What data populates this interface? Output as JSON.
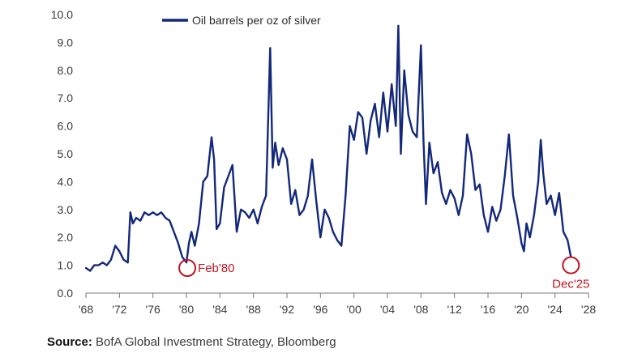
{
  "chart_data": {
    "type": "line",
    "title": "",
    "xlabel": "",
    "ylabel": "",
    "xlim": [
      1968,
      2028
    ],
    "ylim": [
      0,
      10
    ],
    "grid": false,
    "y_ticks": [
      {
        "value": 0,
        "label": "0.0"
      },
      {
        "value": 1,
        "label": "1.0"
      },
      {
        "value": 2,
        "label": "2.0"
      },
      {
        "value": 3,
        "label": "3.0"
      },
      {
        "value": 4,
        "label": "4.0"
      },
      {
        "value": 5,
        "label": "5.0"
      },
      {
        "value": 6,
        "label": "6.0"
      },
      {
        "value": 7,
        "label": "7.0"
      },
      {
        "value": 8,
        "label": "8.0"
      },
      {
        "value": 9,
        "label": "9.0"
      },
      {
        "value": 10,
        "label": "10.0"
      }
    ],
    "x_ticks": [
      {
        "value": 1968,
        "label": "'68"
      },
      {
        "value": 1972,
        "label": "'72"
      },
      {
        "value": 1976,
        "label": "'76"
      },
      {
        "value": 1980,
        "label": "'80"
      },
      {
        "value": 1984,
        "label": "'84"
      },
      {
        "value": 1988,
        "label": "'88"
      },
      {
        "value": 1992,
        "label": "'92"
      },
      {
        "value": 1996,
        "label": "'96"
      },
      {
        "value": 2000,
        "label": "'00"
      },
      {
        "value": 2004,
        "label": "'04"
      },
      {
        "value": 2008,
        "label": "'08"
      },
      {
        "value": 2012,
        "label": "'12"
      },
      {
        "value": 2016,
        "label": "'16"
      },
      {
        "value": 2020,
        "label": "'20"
      },
      {
        "value": 2024,
        "label": "'24"
      },
      {
        "value": 2028,
        "label": "'28"
      }
    ],
    "legend": {
      "position": "top-left",
      "entries": [
        "Oil barrels per oz of silver"
      ]
    },
    "series": [
      {
        "name": "Oil barrels per oz of silver",
        "color": "#13287a",
        "x": [
          1968.0,
          1968.5,
          1969.0,
          1969.5,
          1970.0,
          1970.5,
          1971.0,
          1971.5,
          1972.0,
          1972.5,
          1973.0,
          1973.3,
          1973.6,
          1974.0,
          1974.5,
          1975.0,
          1975.5,
          1976.0,
          1976.5,
          1977.0,
          1977.5,
          1978.0,
          1978.5,
          1979.0,
          1979.5,
          1980.0,
          1980.3,
          1980.6,
          1981.0,
          1981.5,
          1982.0,
          1982.5,
          1983.0,
          1983.3,
          1983.6,
          1984.0,
          1984.5,
          1985.0,
          1985.5,
          1986.0,
          1986.5,
          1987.0,
          1987.5,
          1988.0,
          1988.5,
          1989.0,
          1989.5,
          1990.0,
          1990.3,
          1990.6,
          1991.0,
          1991.5,
          1992.0,
          1992.5,
          1993.0,
          1993.5,
          1994.0,
          1994.5,
          1995.0,
          1995.5,
          1996.0,
          1996.5,
          1997.0,
          1997.5,
          1998.0,
          1998.5,
          1999.0,
          1999.5,
          2000.0,
          2000.5,
          2001.0,
          2001.5,
          2002.0,
          2002.5,
          2003.0,
          2003.5,
          2004.0,
          2004.5,
          2005.0,
          2005.3,
          2005.6,
          2006.0,
          2006.5,
          2007.0,
          2007.5,
          2008.0,
          2008.3,
          2008.6,
          2009.0,
          2009.5,
          2010.0,
          2010.5,
          2011.0,
          2011.5,
          2012.0,
          2012.5,
          2013.0,
          2013.5,
          2014.0,
          2014.5,
          2015.0,
          2015.5,
          2016.0,
          2016.5,
          2017.0,
          2017.5,
          2018.0,
          2018.5,
          2019.0,
          2019.5,
          2020.0,
          2020.3,
          2020.6,
          2021.0,
          2021.5,
          2022.0,
          2022.3,
          2022.6,
          2023.0,
          2023.5,
          2024.0,
          2024.5,
          2025.0,
          2025.5,
          2025.9
        ],
        "values": [
          0.9,
          0.8,
          1.0,
          1.0,
          1.1,
          1.0,
          1.2,
          1.7,
          1.5,
          1.2,
          1.1,
          2.9,
          2.5,
          2.7,
          2.6,
          2.9,
          2.8,
          2.9,
          2.8,
          2.9,
          2.7,
          2.6,
          2.2,
          1.8,
          1.3,
          1.1,
          1.8,
          2.2,
          1.7,
          2.5,
          4.0,
          4.2,
          5.6,
          4.8,
          2.3,
          2.5,
          3.8,
          4.2,
          4.6,
          2.2,
          3.0,
          2.9,
          2.7,
          3.0,
          2.5,
          3.1,
          3.5,
          8.8,
          4.5,
          5.4,
          4.6,
          5.2,
          4.8,
          3.2,
          3.7,
          2.8,
          3.0,
          3.5,
          4.8,
          3.3,
          2.0,
          3.0,
          2.7,
          2.2,
          1.9,
          1.7,
          3.5,
          6.0,
          5.5,
          6.5,
          6.3,
          5.0,
          6.2,
          6.8,
          5.6,
          7.2,
          5.8,
          7.5,
          6.0,
          9.6,
          5.0,
          8.0,
          6.4,
          5.8,
          5.6,
          8.9,
          5.5,
          3.2,
          5.4,
          4.3,
          4.7,
          3.6,
          3.2,
          3.7,
          3.4,
          2.8,
          3.5,
          5.7,
          5.0,
          3.7,
          3.9,
          2.8,
          2.2,
          3.1,
          2.6,
          3.0,
          4.2,
          5.7,
          3.5,
          2.7,
          1.8,
          1.5,
          2.5,
          2.0,
          2.8,
          4.0,
          5.5,
          4.3,
          3.2,
          3.5,
          2.8,
          3.6,
          2.2,
          1.9,
          1.3
        ]
      }
    ],
    "annotations": [
      {
        "label": "Feb'80",
        "x": 1980.1,
        "y": 0.9
      },
      {
        "label": "Dec'25",
        "x": 2025.9,
        "y": 1.0
      }
    ]
  },
  "source": {
    "label": "Source:",
    "text": "BofA Global Investment Strategy, Bloomberg"
  },
  "colors": {
    "line": "#13287a",
    "annotation": "#c0141c",
    "axis": "#7a7a7a",
    "text": "#3a3a3a"
  }
}
